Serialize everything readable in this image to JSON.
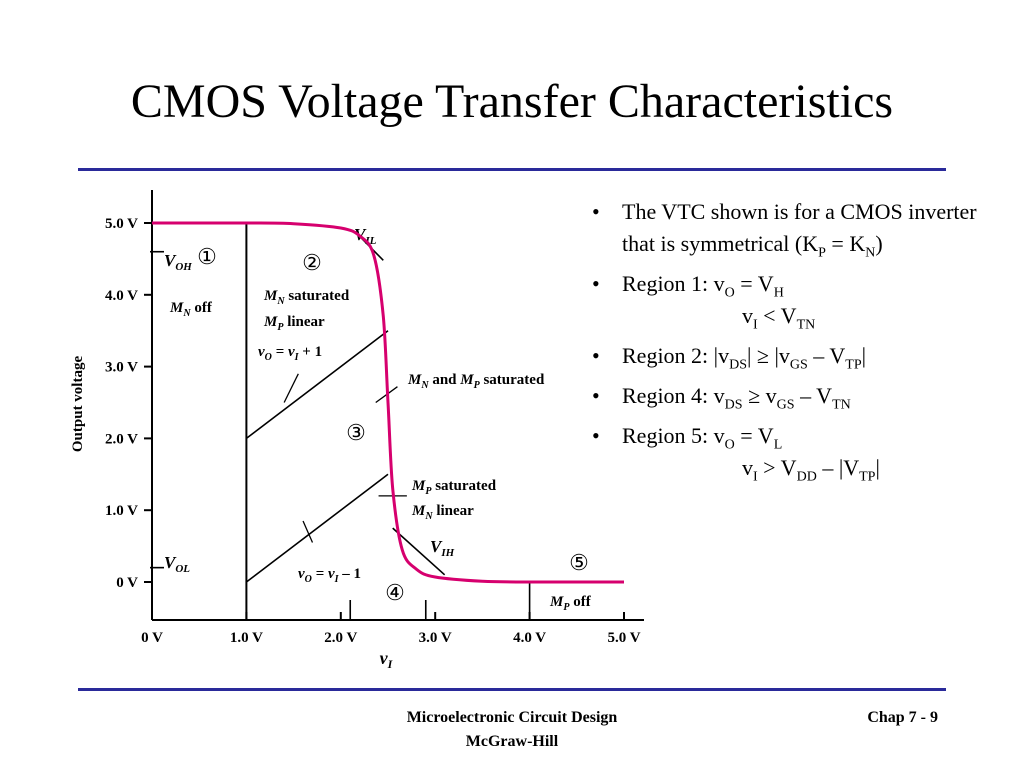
{
  "slide": {
    "title": "CMOS Voltage Transfer Characteristics",
    "footer_line1": "Microelectronic Circuit Design",
    "footer_line2": "McGraw-Hill",
    "footer_right": "Chap 7 - 9"
  },
  "colors": {
    "rule": "#2a2a9a",
    "curve": "#d6006e"
  },
  "bullets": [
    {
      "parts": [
        [
          "t",
          "The VTC shown is for a CMOS inverter that is symmetrical (K"
        ],
        [
          "s",
          "P"
        ],
        [
          "t",
          " = K"
        ],
        [
          "s",
          "N"
        ],
        [
          "t",
          ")"
        ]
      ]
    },
    {
      "parts": [
        [
          "t",
          "Region 1: v"
        ],
        [
          "s",
          "O"
        ],
        [
          "t",
          " = V"
        ],
        [
          "s",
          "H"
        ]
      ],
      "line2": [
        [
          "t",
          "v"
        ],
        [
          "s",
          "I"
        ],
        [
          "t",
          " < V"
        ],
        [
          "s",
          "TN"
        ]
      ]
    },
    {
      "parts": [
        [
          "t",
          "Region 2: |v"
        ],
        [
          "s",
          "DS"
        ],
        [
          "t",
          "| ≥ |v"
        ],
        [
          "s",
          "GS"
        ],
        [
          "t",
          " – V"
        ],
        [
          "s",
          "TP"
        ],
        [
          "t",
          "|"
        ]
      ]
    },
    {
      "parts": [
        [
          "t",
          "Region 4: v"
        ],
        [
          "s",
          "DS"
        ],
        [
          "t",
          " ≥ v"
        ],
        [
          "s",
          "GS"
        ],
        [
          "t",
          " – V"
        ],
        [
          "s",
          "TN"
        ]
      ]
    },
    {
      "parts": [
        [
          "t",
          "Region 5: v"
        ],
        [
          "s",
          "O"
        ],
        [
          "t",
          " = V"
        ],
        [
          "s",
          "L"
        ]
      ],
      "line2": [
        [
          "t",
          "v"
        ],
        [
          "s",
          "I"
        ],
        [
          "t",
          " > V"
        ],
        [
          "s",
          "DD"
        ],
        [
          "t",
          " – |V"
        ],
        [
          "s",
          "TP"
        ],
        [
          "t",
          "|"
        ]
      ]
    }
  ],
  "chart_data": {
    "type": "line",
    "xlabel": "v_I",
    "ylabel": "Output voltage",
    "xlim": [
      0,
      5
    ],
    "ylim": [
      0,
      5
    ],
    "x_ticks": [
      "0 V",
      "1.0 V",
      "2.0 V",
      "3.0 V",
      "4.0 V",
      "5.0 V"
    ],
    "y_ticks": [
      "0 V",
      "1.0 V",
      "2.0 V",
      "3.0 V",
      "4.0 V",
      "5.0 V"
    ],
    "series": [
      {
        "x": [
          0,
          1.0,
          1.5,
          2.0,
          2.2,
          2.35,
          2.45,
          2.5,
          2.55,
          2.65,
          2.8,
          3.0,
          3.5,
          4.0,
          5.0
        ],
        "y": [
          5.0,
          5.0,
          4.99,
          4.93,
          4.82,
          4.55,
          3.7,
          2.5,
          1.3,
          0.45,
          0.18,
          0.07,
          0.01,
          0,
          0
        ]
      }
    ],
    "annotations": {
      "VOH": "V_OH",
      "VOL": "V_OL",
      "VIL": "V_IL",
      "VIH": "V_IH",
      "r1": "①",
      "r2": "②",
      "r3": "③",
      "r4": "④",
      "r5": "⑤",
      "mn_off": "M_N off",
      "mn_sat": "M_N saturated",
      "mp_lin": "M_P linear",
      "eq_plus": "v_O = v_I + 1",
      "both_sat": "M_N and M_P saturated",
      "mp_sat": "M_P saturated",
      "mn_lin": "M_N linear",
      "eq_minus": "v_O = v_I – 1",
      "mp_off": "M_P off"
    }
  }
}
